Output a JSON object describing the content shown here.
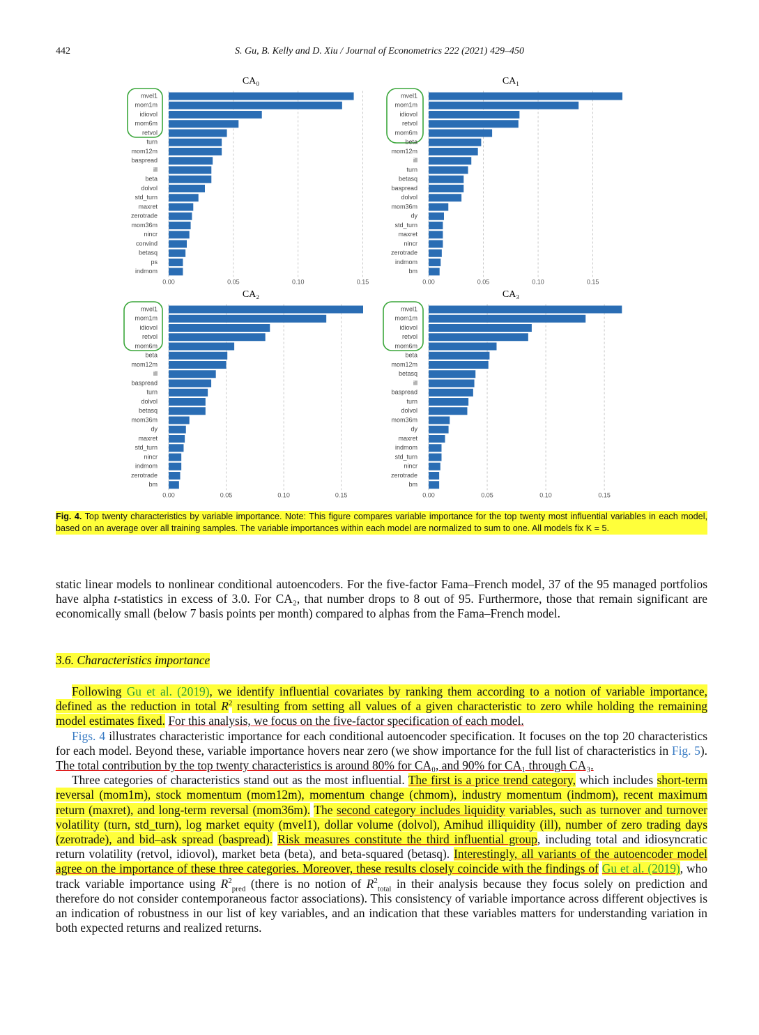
{
  "chart_data": [
    {
      "type": "bar",
      "orientation": "horizontal",
      "title": "CA₀",
      "color": "#2a6db4",
      "grid": true,
      "categories": [
        "mvel1",
        "mom1m",
        "idiovol",
        "mom6m",
        "retvol",
        "turn",
        "mom12m",
        "baspread",
        "ill",
        "beta",
        "dolvol",
        "std_turn",
        "maxret",
        "zerotrade",
        "mom36m",
        "nincr",
        "convind",
        "betasq",
        "ps",
        "indmom"
      ],
      "values": [
        0.143,
        0.134,
        0.072,
        0.054,
        0.045,
        0.041,
        0.041,
        0.034,
        0.033,
        0.033,
        0.028,
        0.023,
        0.019,
        0.018,
        0.017,
        0.016,
        0.014,
        0.013,
        0.011,
        0.011
      ],
      "xlim": [
        0,
        0.154
      ],
      "xticks": [
        {
          "value": 0,
          "label": "0.00"
        },
        {
          "value": 0.05,
          "label": "0.05"
        },
        {
          "value": 0.1,
          "label": "0.10"
        },
        {
          "value": 0.15,
          "label": "0.15"
        }
      ]
    },
    {
      "type": "bar",
      "orientation": "horizontal",
      "title": "CA₁",
      "color": "#2a6db4",
      "grid": true,
      "categories": [
        "mvel1",
        "mom1m",
        "idiovol",
        "retvol",
        "mom6m",
        "beta",
        "mom12m",
        "ill",
        "turn",
        "betasq",
        "baspread",
        "dolvol",
        "mom36m",
        "dy",
        "std_turn",
        "maxret",
        "nincr",
        "zerotrade",
        "indmom",
        "bm"
      ],
      "values": [
        0.177,
        0.137,
        0.083,
        0.082,
        0.058,
        0.048,
        0.045,
        0.039,
        0.036,
        0.032,
        0.032,
        0.03,
        0.018,
        0.014,
        0.013,
        0.013,
        0.013,
        0.012,
        0.011,
        0.01
      ],
      "xlim": [
        0,
        0.177
      ],
      "xticks": [
        {
          "value": 0,
          "label": "0.00"
        },
        {
          "value": 0.05,
          "label": "0.05"
        },
        {
          "value": 0.1,
          "label": "0.10"
        },
        {
          "value": 0.15,
          "label": "0.15"
        }
      ]
    },
    {
      "type": "bar",
      "orientation": "horizontal",
      "title": "CA₂",
      "color": "#2a6db4",
      "grid": true,
      "categories": [
        "mvel1",
        "mom1m",
        "idiovol",
        "retvol",
        "mom6m",
        "beta",
        "mom12m",
        "ill",
        "baspread",
        "turn",
        "dolvol",
        "betasq",
        "mom36m",
        "dy",
        "maxret",
        "std_turn",
        "nincr",
        "indmom",
        "zerotrade",
        "bm"
      ],
      "values": [
        0.169,
        0.137,
        0.088,
        0.084,
        0.057,
        0.051,
        0.05,
        0.041,
        0.037,
        0.034,
        0.032,
        0.032,
        0.018,
        0.015,
        0.014,
        0.013,
        0.011,
        0.011,
        0.01,
        0.009
      ],
      "xlim": [
        0,
        0.169
      ],
      "xticks": [
        {
          "value": 0,
          "label": "0.00"
        },
        {
          "value": 0.05,
          "label": "0.05"
        },
        {
          "value": 0.1,
          "label": "0.10"
        },
        {
          "value": 0.15,
          "label": "0.15"
        }
      ]
    },
    {
      "type": "bar",
      "orientation": "horizontal",
      "title": "CA₃",
      "color": "#2a6db4",
      "grid": true,
      "categories": [
        "mvel1",
        "mom1m",
        "idiovol",
        "retvol",
        "mom6m",
        "beta",
        "mom12m",
        "betasq",
        "ill",
        "baspread",
        "turn",
        "dolvol",
        "mom36m",
        "dy",
        "maxret",
        "indmom",
        "std_turn",
        "nincr",
        "zerotrade",
        "bm"
      ],
      "values": [
        0.165,
        0.134,
        0.088,
        0.085,
        0.058,
        0.052,
        0.051,
        0.04,
        0.039,
        0.038,
        0.034,
        0.033,
        0.018,
        0.017,
        0.014,
        0.011,
        0.011,
        0.01,
        0.009,
        0.009
      ],
      "xlim": [
        0,
        0.166
      ],
      "xticks": [
        {
          "value": 0,
          "label": "0.00"
        },
        {
          "value": 0.05,
          "label": "0.05"
        },
        {
          "value": 0.1,
          "label": "0.10"
        },
        {
          "value": 0.15,
          "label": "0.15"
        }
      ]
    }
  ],
  "document": {
    "header": {
      "page": "442",
      "running": "S. Gu, B. Kelly and D. Xiu / Journal of Econometrics 222 (2021) 429–450"
    },
    "caption": {
      "label": "Fig. 4.",
      "text": "Top twenty characteristics by variable importance. Note: This figure compares variable importance for the top twenty most influential variables in each model, based on an average over all training samples. The variable importances within each model are normalized to sum to one. All models fix K = 5."
    },
    "section": "3.6. Characteristics importance",
    "paragraphs": [
      [
        "static linear models to nonlinear conditional autoencoders. For the five-factor Fama–French model, 37 of the 95 managed portfolios have alpha ",
        "t",
        "-statistics in excess of 3.0. For CA₂, that number drops to 8 out of 95. Furthermore, those that remain significant are economically small (below 7 basis points per month) compared to alphas from the Fama–French model."
      ],
      [
        "Following ",
        "Gu et al. (2019)",
        ", we identify influential covariates by ranking them according to a notion of variable importance, defined as the reduction in total ",
        "R",
        "2",
        " resulting from setting all values of a given characteristic to zero while holding the remaining model estimates fixed.",
        "For this analysis, we focus on the five-factor specification of each model."
      ],
      [
        "Figs. 4",
        " illustrates characteristic importance for each conditional autoencoder specification. It focuses on the top 20 characteristics for each model. Beyond these, variable importance hovers near zero (we show importance for the full list of characteristics in ",
        "Fig. 5",
        ").",
        "The total contribution by the top twenty characteristics is around 80% for CA₀, and 90% for CA₁ through CA₃."
      ],
      [
        "Three categories of characteristics stand out as the most influential.",
        "The first is a price trend category,",
        " which includes ",
        "short-term reversal (mom1m), stock momentum (mom12m), momentum change (chmom), industry momentum (indmom), recent maximum return (maxret), and long-term reversal (mom36m).",
        "The ",
        "second category includes liquidity",
        " variables, such as turnover and turnover volatility (turn, std_turn), log market equity (mvel1), dollar volume (dolvol), Amihud illiquidity (ill), number of zero trading days (zerotrade), and bid–ask spread (baspread).",
        "Risk measures constitute the third influential group",
        ", including total and idiosyncratic return volatility (retvol, idiovol), market beta (beta), and beta-squared (betasq).",
        "Interestingly, all variants of the autoencoder model agree on the importance of these three categories. Moreover, these results closely coincide with the findings of",
        "Gu et al. (2019)",
        ", who track variable importance using ",
        "R",
        "2",
        "pred",
        " (there is no notion of ",
        "R",
        "2",
        "total",
        " in their analysis because they focus solely on prediction and therefore do not consider contemporaneous factor associations). This consistency of variable importance across different objectives is an indication of robustness in our list of key variables, and an indication that these variables matters for understanding variation in both expected returns and realized returns."
      ]
    ]
  }
}
